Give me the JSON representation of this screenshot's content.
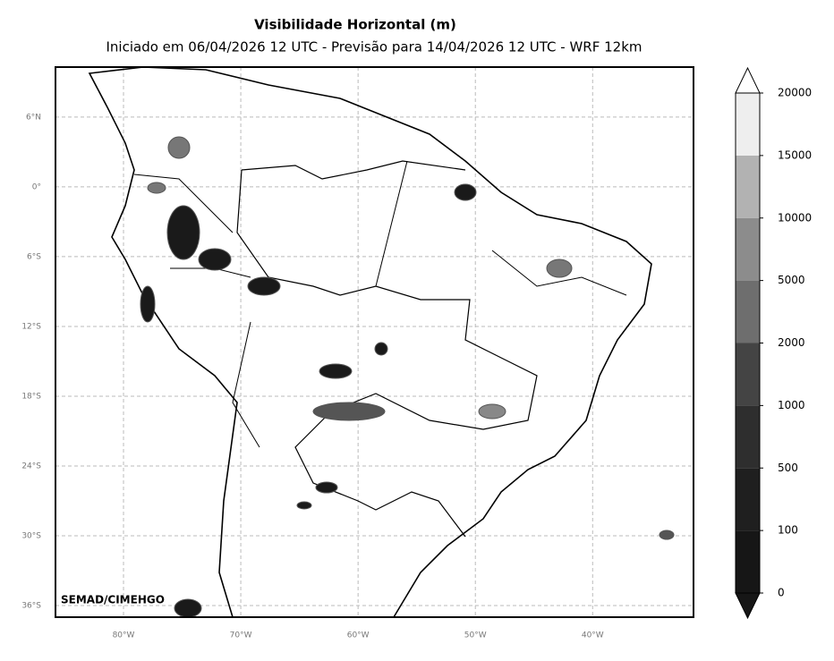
{
  "map": {
    "title": "Visibilidade Horizontal (m)",
    "subtitle": "Iniciado em 06/04/2026 12 UTC - Previsão para 14/04/2026 12 UTC - WRF 12km",
    "credit": "SEMAD/CIMEHGO",
    "xlim": [
      -85.8,
      -31.4
    ],
    "ylim": [
      -37,
      10.3
    ],
    "grid": true,
    "yticks": [
      {
        "value": 6,
        "label": "6°N"
      },
      {
        "value": 0,
        "label": "0°"
      },
      {
        "value": -6,
        "label": "6°S"
      },
      {
        "value": -12,
        "label": "12°S"
      },
      {
        "value": -18,
        "label": "18°S"
      },
      {
        "value": -24,
        "label": "24°S"
      },
      {
        "value": -30,
        "label": "30°S"
      },
      {
        "value": -36,
        "label": "36°S"
      }
    ],
    "xticks": [
      {
        "value": -80,
        "label": "80°W"
      },
      {
        "value": -70,
        "label": "70°W"
      },
      {
        "value": -60,
        "label": "60°W"
      },
      {
        "value": -50,
        "label": "50°W"
      },
      {
        "value": -40,
        "label": "40°W"
      }
    ],
    "colorbar": {
      "ticks": [
        0,
        100,
        500,
        1000,
        2000,
        5000,
        10000,
        15000,
        20000
      ],
      "colors": [
        "#161616",
        "#1f1f1f",
        "#2e2e2e",
        "#444444",
        "#6e6e6e",
        "#8c8c8c",
        "#b2b2b2",
        "#eeeeee"
      ]
    }
  }
}
